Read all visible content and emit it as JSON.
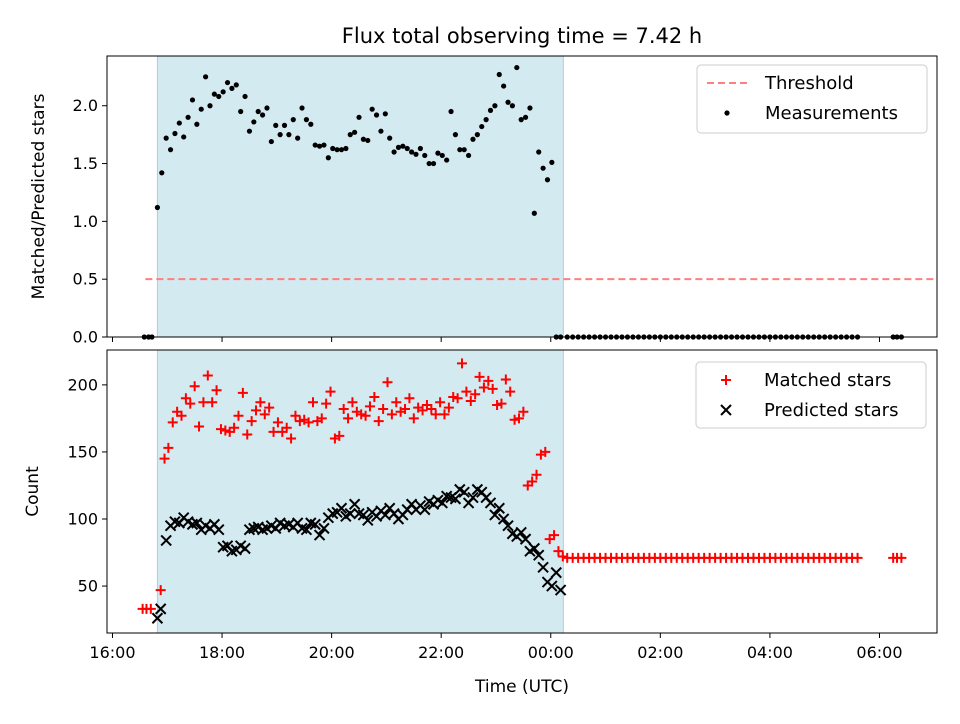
{
  "chart_data": {
    "type": "scatter",
    "title": "Flux total observing time = 7.42 h",
    "xlabel": "Time (UTC)",
    "x_unit": "hours",
    "x_ticks": [
      {
        "h": 16,
        "label": "16:00"
      },
      {
        "h": 18,
        "label": "18:00"
      },
      {
        "h": 20,
        "label": "20:00"
      },
      {
        "h": 22,
        "label": "22:00"
      },
      {
        "h": 24,
        "label": "00:00"
      },
      {
        "h": 26,
        "label": "02:00"
      },
      {
        "h": 28,
        "label": "04:00"
      },
      {
        "h": 30,
        "label": "06:00"
      }
    ],
    "xlim": [
      15.9,
      31.05
    ],
    "shaded_window": [
      16.82,
      24.23
    ],
    "shade_color": "#d4eaf1",
    "panels": [
      {
        "id": "ratio",
        "ylabel": "Matched/Predicted stars",
        "ylim": [
          0,
          2.43
        ],
        "y_ticks": [
          0.0,
          0.5,
          1.0,
          1.5,
          2.0
        ],
        "y_tick_labels": [
          "0.0",
          "0.5",
          "1.0",
          "1.5",
          "2.0"
        ],
        "show_x_tick_labels": false,
        "lines": [
          {
            "name": "Threshold",
            "color": "#ff7f7f",
            "dash": true,
            "x": [
              16.6,
              31.0
            ],
            "y": [
              0.5,
              0.5
            ]
          }
        ],
        "series": [
          {
            "name": "Measurements",
            "marker": "dot",
            "color": "#000000",
            "x": [
              16.58,
              16.66,
              16.72,
              16.82,
              16.9,
              16.98,
              17.06,
              17.14,
              17.22,
              17.3,
              17.38,
              17.46,
              17.54,
              17.62,
              17.7,
              17.78,
              17.86,
              17.94,
              18.02,
              18.1,
              18.18,
              18.26,
              18.34,
              18.42,
              18.5,
              18.58,
              18.66,
              18.74,
              18.82,
              18.9,
              18.98,
              19.06,
              19.14,
              19.22,
              19.3,
              19.38,
              19.46,
              19.54,
              19.62,
              19.7,
              19.78,
              19.86,
              19.94,
              20.02,
              20.1,
              20.18,
              20.26,
              20.34,
              20.42,
              20.5,
              20.58,
              20.66,
              20.74,
              20.82,
              20.9,
              20.98,
              21.06,
              21.14,
              21.22,
              21.3,
              21.38,
              21.46,
              21.54,
              21.62,
              21.7,
              21.78,
              21.86,
              21.94,
              22.02,
              22.1,
              22.18,
              22.26,
              22.34,
              22.42,
              22.5,
              22.58,
              22.66,
              22.74,
              22.82,
              22.9,
              22.98,
              23.06,
              23.14,
              23.22,
              23.3,
              23.38,
              23.46,
              23.54,
              23.62,
              23.7,
              23.78,
              23.86,
              23.94,
              24.02,
              24.1,
              24.18,
              24.3,
              24.4,
              24.5,
              24.6,
              24.7,
              24.8,
              24.9,
              25.0,
              25.1,
              25.2,
              25.3,
              25.4,
              25.5,
              25.6,
              25.7,
              25.8,
              25.9,
              26.0,
              26.1,
              26.2,
              26.3,
              26.4,
              26.5,
              26.6,
              26.7,
              26.8,
              26.9,
              27.0,
              27.1,
              27.2,
              27.3,
              27.4,
              27.5,
              27.6,
              27.7,
              27.8,
              27.9,
              28.0,
              28.1,
              28.2,
              28.3,
              28.4,
              28.5,
              28.6,
              28.7,
              28.8,
              28.9,
              29.0,
              29.1,
              29.2,
              29.3,
              29.4,
              29.5,
              29.6,
              30.25,
              30.32,
              30.4
            ],
            "y": [
              0,
              0,
              0,
              1.12,
              1.42,
              1.72,
              1.62,
              1.76,
              1.85,
              1.73,
              1.9,
              2.05,
              1.84,
              1.97,
              2.25,
              2.0,
              2.1,
              2.08,
              2.12,
              2.2,
              2.15,
              2.18,
              1.95,
              2.08,
              1.78,
              1.86,
              1.95,
              1.92,
              1.98,
              1.69,
              1.83,
              1.75,
              1.83,
              1.75,
              1.88,
              1.72,
              1.98,
              1.88,
              1.84,
              1.66,
              1.65,
              1.66,
              1.55,
              1.63,
              1.62,
              1.62,
              1.63,
              1.75,
              1.77,
              1.9,
              1.71,
              1.7,
              1.97,
              1.92,
              1.78,
              1.93,
              1.72,
              1.6,
              1.64,
              1.65,
              1.63,
              1.6,
              1.58,
              1.63,
              1.57,
              1.5,
              1.5,
              1.59,
              1.57,
              1.53,
              1.95,
              1.75,
              1.62,
              1.62,
              1.57,
              1.71,
              1.75,
              1.82,
              1.88,
              1.96,
              2.0,
              2.27,
              2.17,
              2.03,
              2.0,
              2.33,
              1.88,
              1.9,
              1.98,
              1.07,
              1.6,
              1.46,
              1.36,
              1.51,
              0,
              0,
              0,
              0,
              0,
              0,
              0,
              0,
              0,
              0,
              0,
              0,
              0,
              0,
              0,
              0,
              0,
              0,
              0,
              0,
              0,
              0,
              0,
              0,
              0,
              0,
              0,
              0,
              0,
              0,
              0,
              0,
              0,
              0,
              0,
              0,
              0,
              0,
              0,
              0,
              0,
              0,
              0,
              0,
              0,
              0,
              0,
              0,
              0,
              0,
              0,
              0,
              0,
              0,
              0,
              0,
              0,
              0,
              0
            ]
          }
        ]
      },
      {
        "id": "counts",
        "ylabel": "Count",
        "ylim": [
          15,
          226
        ],
        "y_ticks": [
          50,
          100,
          150,
          200
        ],
        "y_tick_labels": [
          "50",
          "100",
          "150",
          "200"
        ],
        "show_x_tick_labels": true,
        "lines": [],
        "series": [
          {
            "name": "Matched stars",
            "marker": "plus",
            "color": "#ff0000",
            "x": [
              16.55,
              16.62,
              16.7,
              16.88,
              16.95,
              17.02,
              17.1,
              17.18,
              17.26,
              17.34,
              17.42,
              17.5,
              17.58,
              17.66,
              17.74,
              17.82,
              17.9,
              17.98,
              18.06,
              18.14,
              18.22,
              18.3,
              18.38,
              18.46,
              18.54,
              18.62,
              18.7,
              18.78,
              18.86,
              18.94,
              19.02,
              19.1,
              19.18,
              19.26,
              19.34,
              19.42,
              19.5,
              19.58,
              19.66,
              19.74,
              19.82,
              19.9,
              19.98,
              20.06,
              20.14,
              20.22,
              20.3,
              20.38,
              20.46,
              20.54,
              20.62,
              20.7,
              20.78,
              20.86,
              20.94,
              21.02,
              21.1,
              21.18,
              21.26,
              21.34,
              21.42,
              21.5,
              21.58,
              21.66,
              21.74,
              21.82,
              21.9,
              21.98,
              22.06,
              22.14,
              22.22,
              22.3,
              22.38,
              22.46,
              22.54,
              22.62,
              22.7,
              22.78,
              22.86,
              22.94,
              23.02,
              23.1,
              23.18,
              23.26,
              23.34,
              23.42,
              23.5,
              23.58,
              23.66,
              23.74,
              23.82,
              23.9,
              23.98,
              24.06,
              24.14,
              24.22,
              24.3,
              24.4,
              24.5,
              24.6,
              24.7,
              24.8,
              24.9,
              25.0,
              25.1,
              25.2,
              25.3,
              25.4,
              25.5,
              25.6,
              25.7,
              25.8,
              25.9,
              26.0,
              26.1,
              26.2,
              26.3,
              26.4,
              26.5,
              26.6,
              26.7,
              26.8,
              26.9,
              27.0,
              27.1,
              27.2,
              27.3,
              27.4,
              27.5,
              27.6,
              27.7,
              27.8,
              27.9,
              28.0,
              28.1,
              28.2,
              28.3,
              28.4,
              28.5,
              28.6,
              28.7,
              28.8,
              28.9,
              29.0,
              29.1,
              29.2,
              29.3,
              29.4,
              29.5,
              29.6,
              30.25,
              30.32,
              30.4
            ],
            "y": [
              33,
              33,
              33,
              47,
              145,
              153,
              172,
              180,
              177,
              190,
              186,
              199,
              169,
              187,
              207,
              187,
              196,
              167,
              166,
              165,
              168,
              177,
              194,
              163,
              173,
              181,
              187,
              178,
              183,
              165,
              172,
              165,
              168,
              160,
              177,
              173,
              174,
              172,
              187,
              173,
              175,
              186,
              195,
              160,
              162,
              182,
              175,
              187,
              180,
              178,
              177,
              184,
              191,
              173,
              182,
              202,
              178,
              187,
              180,
              182,
              190,
              175,
              183,
              181,
              185,
              182,
              178,
              187,
              178,
              183,
              191,
              190,
              216,
              195,
              188,
              193,
              206,
              198,
              203,
              197,
              185,
              186,
              204,
              195,
              174,
              175,
              180,
              125,
              128,
              133,
              148,
              150,
              85,
              88,
              76,
              72,
              71,
              71,
              71,
              71,
              71,
              71,
              71,
              71,
              71,
              71,
              71,
              71,
              71,
              71,
              71,
              71,
              71,
              71,
              71,
              71,
              71,
              71,
              71,
              71,
              71,
              71,
              71,
              71,
              71,
              71,
              71,
              71,
              71,
              71,
              71,
              71,
              71,
              71,
              71,
              71,
              71,
              71,
              71,
              71,
              71,
              71,
              71,
              71,
              71,
              71,
              71,
              71,
              71,
              71,
              71,
              71,
              71
            ]
          },
          {
            "name": "Predicted stars",
            "marker": "x",
            "color": "#000000",
            "x": [
              16.82,
              16.88,
              16.98,
              17.06,
              17.14,
              17.22,
              17.3,
              17.38,
              17.46,
              17.54,
              17.62,
              17.7,
              17.78,
              17.86,
              17.94,
              18.02,
              18.1,
              18.18,
              18.26,
              18.34,
              18.42,
              18.5,
              18.58,
              18.66,
              18.74,
              18.82,
              18.9,
              18.98,
              19.06,
              19.14,
              19.22,
              19.3,
              19.38,
              19.46,
              19.54,
              19.62,
              19.7,
              19.78,
              19.86,
              19.94,
              20.02,
              20.1,
              20.18,
              20.26,
              20.34,
              20.42,
              20.5,
              20.58,
              20.66,
              20.74,
              20.82,
              20.9,
              20.98,
              21.06,
              21.14,
              21.22,
              21.3,
              21.38,
              21.46,
              21.54,
              21.62,
              21.7,
              21.78,
              21.86,
              21.94,
              22.02,
              22.1,
              22.18,
              22.26,
              22.34,
              22.42,
              22.5,
              22.58,
              22.66,
              22.74,
              22.82,
              22.9,
              22.98,
              23.06,
              23.14,
              23.22,
              23.3,
              23.38,
              23.46,
              23.54,
              23.62,
              23.7,
              23.78,
              23.86,
              23.94,
              24.02,
              24.1,
              24.18
            ],
            "y": [
              26,
              33,
              84,
              95,
              98,
              97,
              101,
              98,
              96,
              97,
              92,
              95,
              93,
              96,
              92,
              79,
              80,
              76,
              77,
              80,
              78,
              92,
              93,
              94,
              92,
              93,
              95,
              93,
              97,
              95,
              96,
              94,
              97,
              93,
              92,
              97,
              96,
              88,
              93,
              101,
              104,
              105,
              108,
              102,
              104,
              111,
              104,
              103,
              99,
              105,
              102,
              106,
              103,
              108,
              104,
              100,
              103,
              107,
              111,
              107,
              110,
              107,
              113,
              111,
              114,
              112,
              117,
              116,
              115,
              122,
              120,
              112,
              116,
              122,
              120,
              116,
              112,
              103,
              108,
              100,
              95,
              89,
              87,
              90,
              85,
              76,
              78,
              73,
              64,
              53,
              50,
              60,
              47
            ]
          }
        ]
      }
    ]
  }
}
